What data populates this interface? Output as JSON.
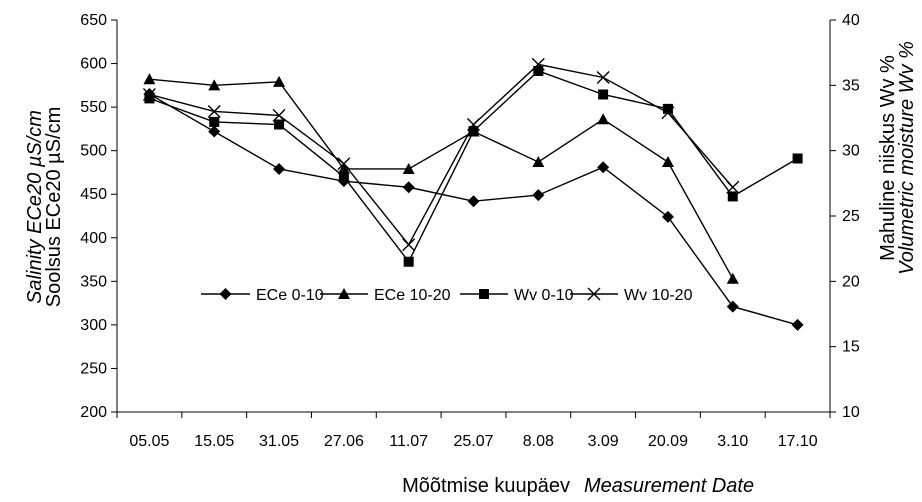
{
  "chart_data": {
    "type": "line",
    "categories": [
      "05.05",
      "15.05",
      "31.05",
      "27.06",
      "11.07",
      "25.07",
      "8.08",
      "3.09",
      "20.09",
      "3.10",
      "17.10"
    ],
    "y_left": {
      "label_line1": "Salinity ECe20 µS/cm",
      "label_line2": "Soolsus ECe20 µS/cm",
      "ticks": [
        200,
        250,
        300,
        350,
        400,
        450,
        500,
        550,
        600,
        650
      ],
      "ylim": [
        200,
        650
      ]
    },
    "y_right": {
      "label_line1": "Mahuline niiskus Wv %",
      "label_line2": "Volumetric moisture Wv %",
      "ticks": [
        10,
        15,
        20,
        25,
        30,
        35,
        40
      ],
      "ylim": [
        10,
        40
      ]
    },
    "xlabel": {
      "plain": "Mõõtmise kuupäev",
      "italic": "Measurement Date"
    },
    "legend_position": "middle-left, inside plot",
    "grid": false,
    "series": [
      {
        "name": "ECe 0-10",
        "axis": "left",
        "marker": "diamond",
        "values": [
          565,
          522,
          479,
          465,
          458,
          442,
          449,
          481,
          424,
          321,
          300
        ]
      },
      {
        "name": "ECe 10-20",
        "axis": "left",
        "marker": "triangle",
        "values": [
          582,
          575,
          579,
          479,
          479,
          522,
          487,
          536,
          487,
          353,
          null
        ]
      },
      {
        "name": "Wv 0-10",
        "axis": "right",
        "marker": "square",
        "values": [
          34.0,
          32.2,
          32.0,
          28.0,
          21.5,
          31.5,
          36.1,
          34.3,
          33.2,
          26.5,
          29.4
        ]
      },
      {
        "name": "Wv 10-20",
        "axis": "right",
        "marker": "x",
        "values": [
          34.3,
          33.0,
          32.7,
          29.0,
          22.8,
          32.0,
          36.6,
          35.6,
          32.9,
          27.2,
          null
        ]
      }
    ]
  }
}
